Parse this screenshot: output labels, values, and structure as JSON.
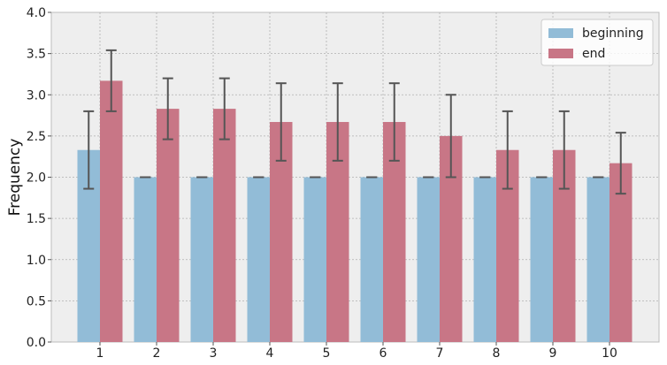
{
  "chart_data": {
    "type": "bar",
    "title": "",
    "xlabel": "",
    "ylabel": "Frequency",
    "categories": [
      "1",
      "2",
      "3",
      "4",
      "5",
      "6",
      "7",
      "8",
      "9",
      "10"
    ],
    "series": [
      {
        "name": "beginning",
        "color": "#92bcd7",
        "values": [
          2.33,
          2.0,
          2.0,
          2.0,
          2.0,
          2.0,
          2.0,
          2.0,
          2.0,
          2.0
        ],
        "errors": [
          0.47,
          0.0,
          0.0,
          0.0,
          0.0,
          0.0,
          0.0,
          0.0,
          0.0,
          0.0
        ]
      },
      {
        "name": "end",
        "color": "#c87686",
        "values": [
          3.17,
          2.83,
          2.83,
          2.67,
          2.67,
          2.67,
          2.5,
          2.33,
          2.33,
          2.17
        ],
        "errors": [
          0.37,
          0.37,
          0.37,
          0.47,
          0.47,
          0.47,
          0.5,
          0.47,
          0.47,
          0.37
        ]
      }
    ],
    "ylim": [
      0,
      4.0
    ],
    "yticks": [
      "0.0",
      "0.5",
      "1.0",
      "1.5",
      "2.0",
      "2.5",
      "3.0",
      "3.5",
      "4.0"
    ],
    "grid": true,
    "legend_position": "top-right",
    "background": "#eeeeee"
  }
}
